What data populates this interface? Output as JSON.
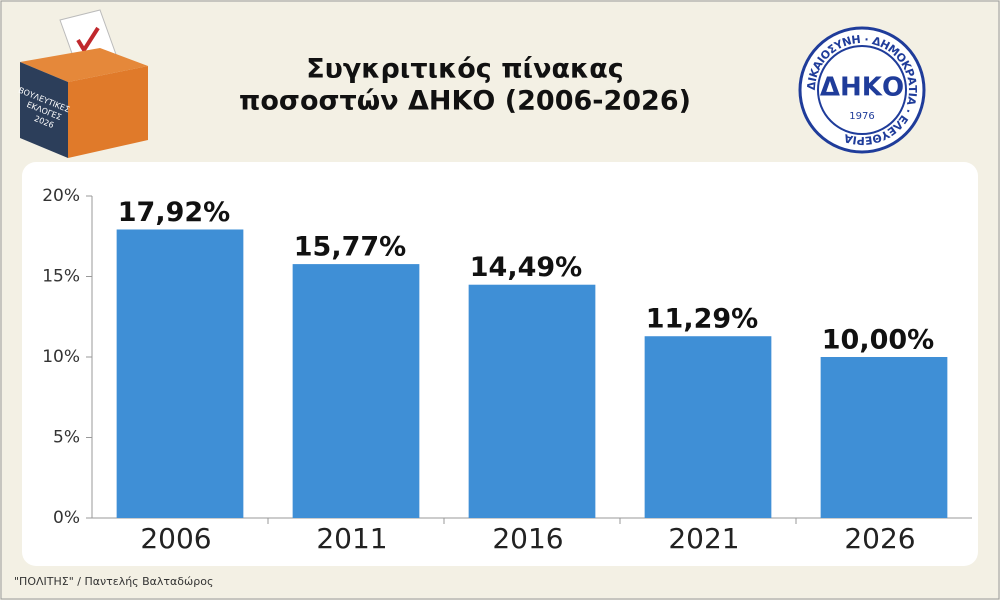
{
  "chart_data": {
    "type": "bar",
    "title": [
      "Συγκριτικός πίνακας",
      "ποσοστών ΔΗΚΟ (2006-2026)"
    ],
    "categories": [
      "2006",
      "2011",
      "2016",
      "2021",
      "2026"
    ],
    "values": [
      17.92,
      15.77,
      14.49,
      11.29,
      10.0
    ],
    "value_labels": [
      "17,92%",
      "15,77%",
      "14,49%",
      "11,29%",
      "10,00%"
    ],
    "color": "#3f8fd6",
    "ylim": [
      0,
      20
    ],
    "yticks": [
      {
        "value": 0,
        "label": "0%"
      },
      {
        "value": 5,
        "label": "5%"
      },
      {
        "value": 10,
        "label": "10%"
      },
      {
        "value": 15,
        "label": "15%"
      },
      {
        "value": 20,
        "label": "20%"
      }
    ],
    "grid": false,
    "source": "\"ΠΟΛΙΤΗΣ\" / Παντελής Βαλταδώρος"
  },
  "ballot_box": {
    "lines": [
      "ΒΟΥΛΕΥΤΙΚΕΣ",
      "ΕΚΛΟΓΕΣ",
      "2026"
    ]
  },
  "logo": {
    "name": "ΔΗΚΟ",
    "year": "1976",
    "motto": "ΔΙΚΑΙΟΣΥΝΗ · ΔΗΜΟΚΡΑΤΙΑ · ΕΛΕΥΘΕΡΙΑ"
  }
}
